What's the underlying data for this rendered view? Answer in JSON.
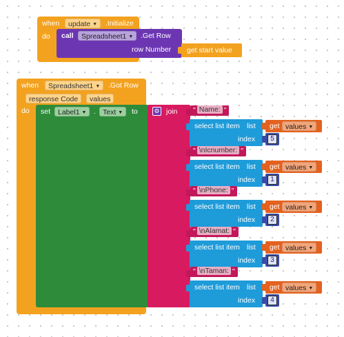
{
  "colors": {
    "event": "#f3a21f",
    "procedure": "#6c36b3",
    "text_join": "#d81b60",
    "text_string": "#c2185b",
    "list_select": "#1e9bd9",
    "variable_get": "#e3621f",
    "math_number": "#3a4ca6",
    "component_set": "#2e8b3a"
  },
  "initialize_block": {
    "when_label": "when",
    "component": "update",
    "event": ".Initialize",
    "do_label": "do",
    "call_label": "call",
    "call_component": "Spreadsheet1",
    "method": ".Get Row",
    "arg_label": "row Number",
    "get_start_value": "get start value"
  },
  "gotrow_block": {
    "when_label": "when",
    "component": "Spreadsheet1",
    "event": ".Got Row",
    "params": [
      "response Code",
      "values"
    ],
    "do_label": "do",
    "set_label": "set",
    "set_component": "Label1",
    "set_property": "Text",
    "to_label": "to",
    "gear_icon": "gear-icon",
    "join_label": "join",
    "items": [
      {
        "string": "Name:",
        "select_label": "select list item",
        "list_label": "list",
        "get_label": "get",
        "variable": "values",
        "index_label": "index",
        "index": "5"
      },
      {
        "string": "\\nIcnumber:",
        "select_label": "select list item",
        "list_label": "list",
        "get_label": "get",
        "variable": "values",
        "index_label": "index",
        "index": "1"
      },
      {
        "string": "\\nPhone:",
        "select_label": "select list item",
        "list_label": "list",
        "get_label": "get",
        "variable": "values",
        "index_label": "index",
        "index": "2"
      },
      {
        "string": "\\nAlamat:",
        "select_label": "select list item",
        "list_label": "list",
        "get_label": "get",
        "variable": "values",
        "index_label": "index",
        "index": "3"
      },
      {
        "string": "\\nTaman:",
        "select_label": "select list item",
        "list_label": "list",
        "get_label": "get",
        "variable": "values",
        "index_label": "index",
        "index": "4"
      }
    ]
  },
  "dropdown_arrow": "▼",
  "quote_char": "\""
}
